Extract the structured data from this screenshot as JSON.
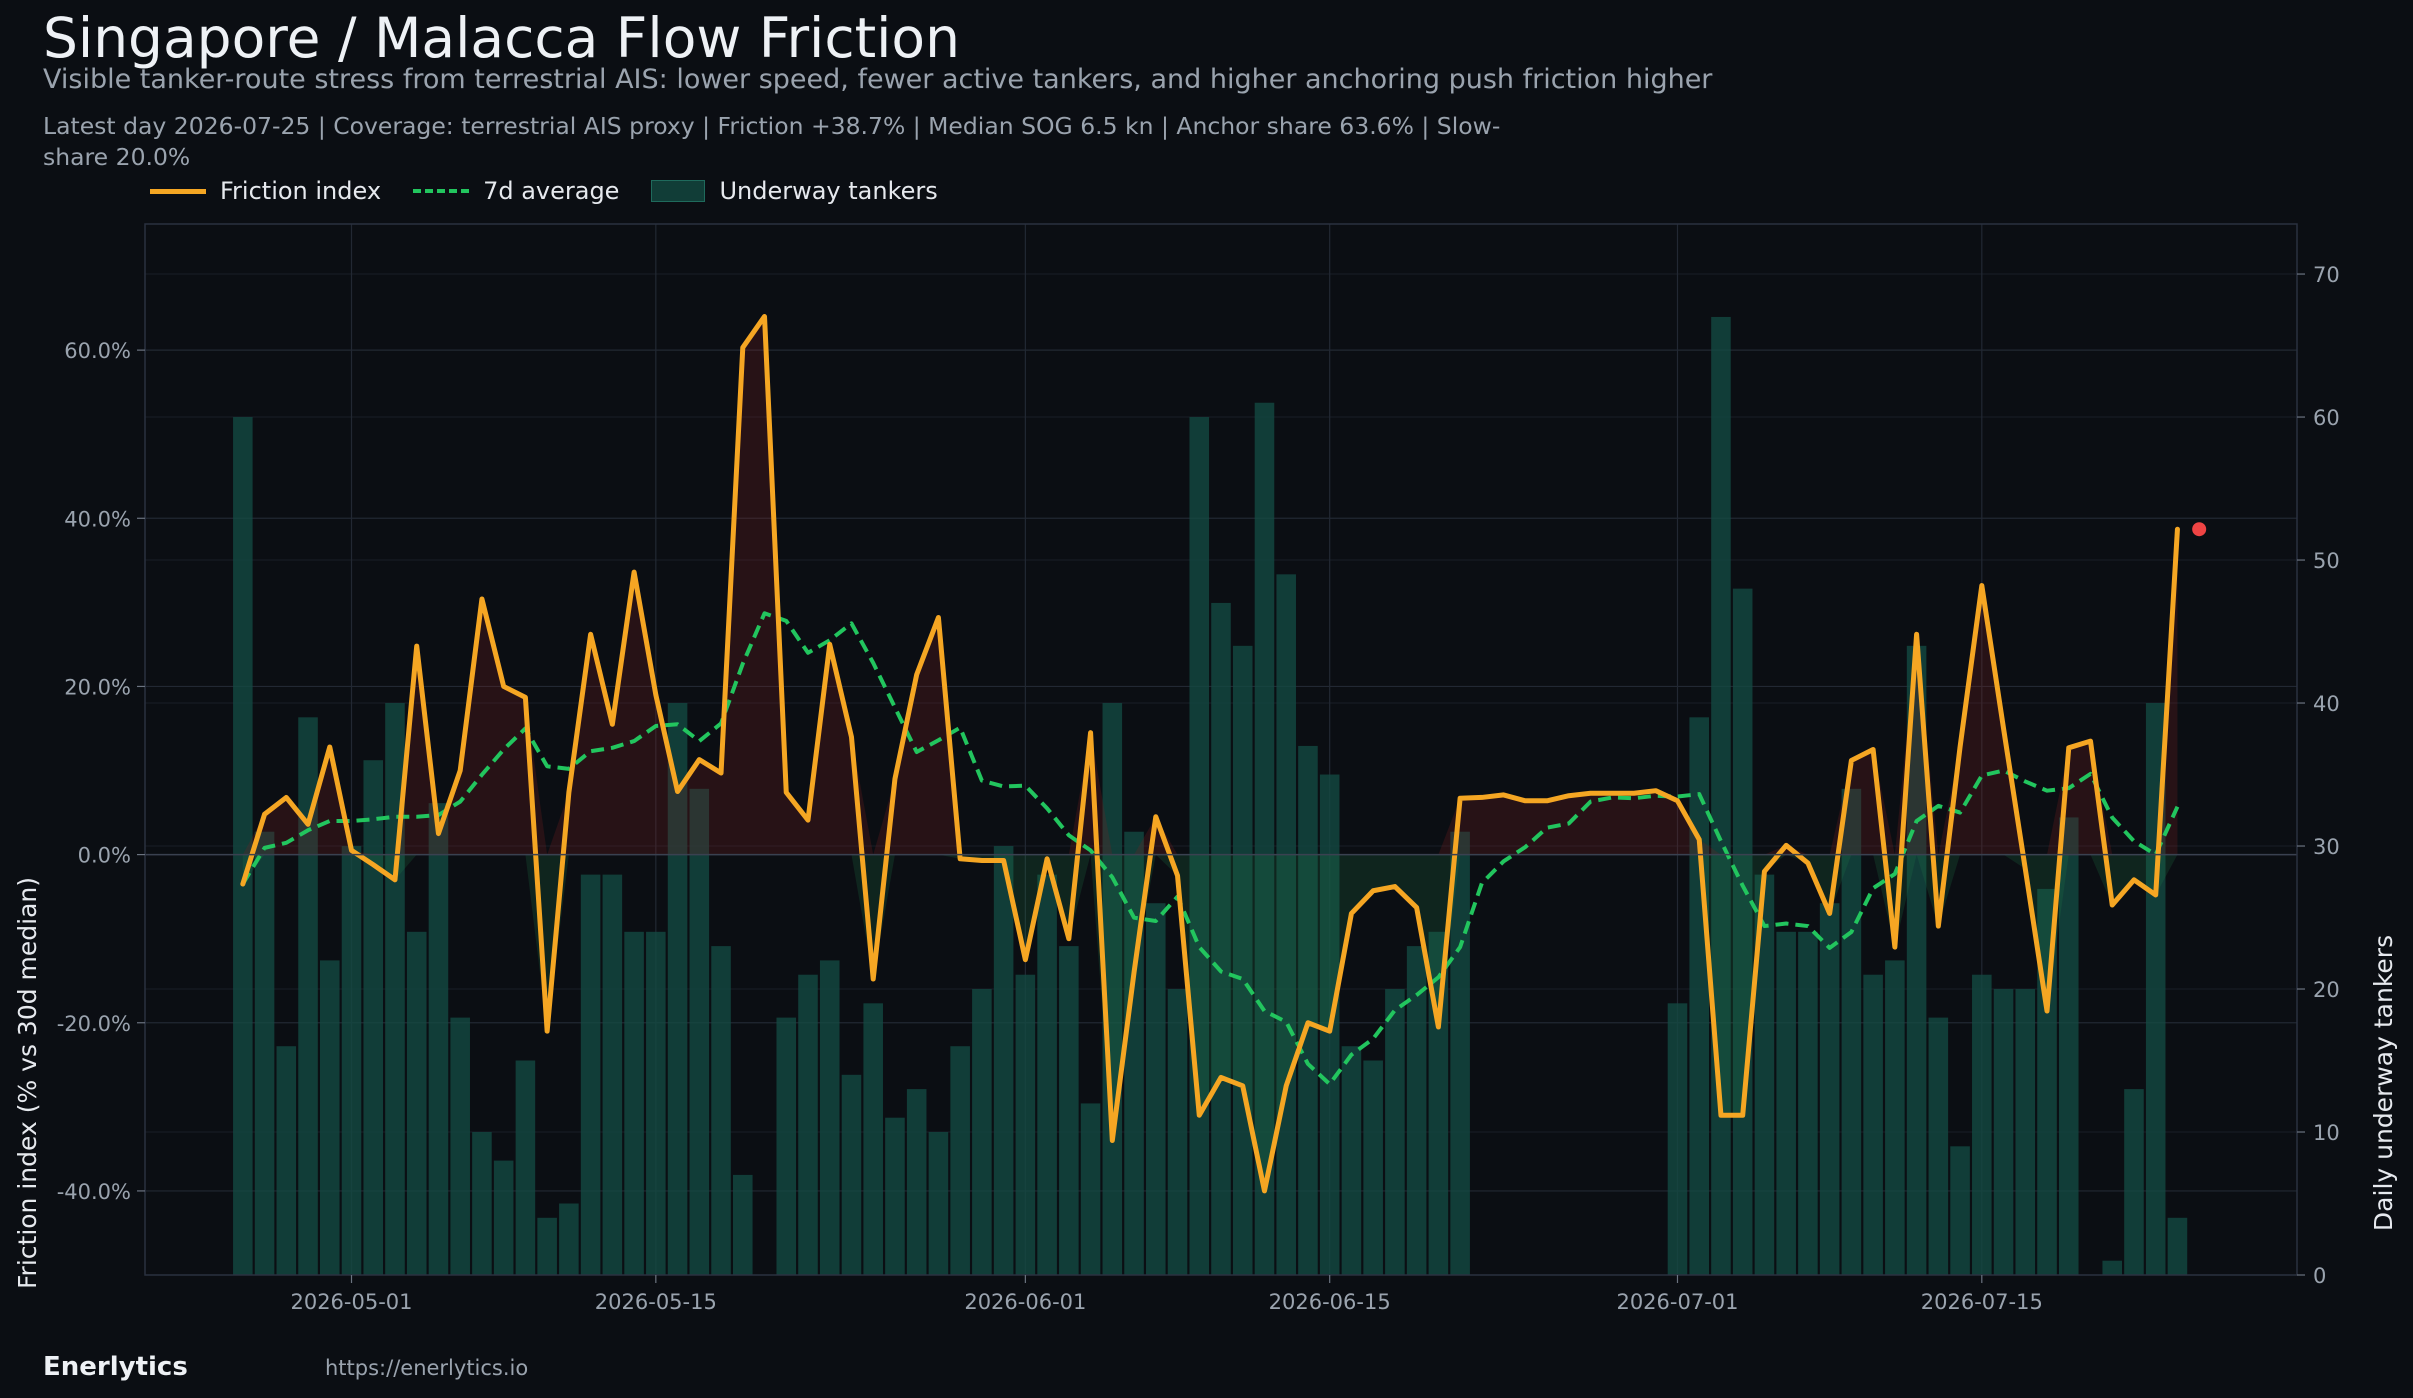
{
  "header": {
    "title": "Singapore / Malacca Flow Friction",
    "subtitle": "Visible tanker-route stress from terrestrial AIS: lower speed, fewer active tankers, and higher anchoring push friction higher",
    "stats": "Latest day 2026-07-25  |  Coverage: terrestrial AIS proxy  |  Friction +38.7%  |  Median SOG 6.5 kn  |  Anchor share 63.6%  |  Slow-share 20.0%"
  },
  "legend": {
    "friction": "Friction index",
    "avg": "7d average",
    "tankers": "Underway tankers"
  },
  "footer": {
    "brand": "Enerlytics",
    "url": "https://enerlytics.io"
  },
  "colors": {
    "background": "#0b0e13",
    "friction": "#f5a623",
    "avg": "#22c55e",
    "tankers": "#134a42",
    "latest_dot": "#ef4444",
    "positive_fill": "#7a1e1e",
    "negative_fill": "#1f7a4a"
  },
  "chart_data": {
    "type": "line",
    "title": "Singapore / Malacca Flow Friction",
    "start_date": "2026-04-26",
    "end_date": "2026-07-25",
    "ylabel": "Friction index (% vs 30d median)",
    "y2label": "Daily underway tankers",
    "ylim": [
      -50,
      75
    ],
    "y2lim": [
      0,
      73.5
    ],
    "y_ticks": [
      "-40.0%",
      "-20.0%",
      "0.0%",
      "20.0%",
      "40.0%",
      "60.0%"
    ],
    "y_tick_values": [
      -40,
      -20,
      0,
      20,
      40,
      60
    ],
    "y2_ticks": [
      "0",
      "10",
      "20",
      "30",
      "40",
      "50",
      "60",
      "70"
    ],
    "y2_tick_values": [
      0,
      10,
      20,
      30,
      40,
      50,
      60,
      70
    ],
    "x_ticks": [
      "2026-05-01",
      "2026-05-15",
      "2026-06-01",
      "2026-06-15",
      "2026-07-01",
      "2026-07-15"
    ],
    "grid": true,
    "legend_position": "top-left",
    "series": [
      {
        "name": "Friction index",
        "values": [
          -3.5,
          4.8,
          6.8,
          3.6,
          12.8,
          0.5,
          -1.2,
          -3.0,
          24.8,
          2.5,
          10.0,
          30.4,
          20.0,
          18.7,
          -21.0,
          7.4,
          26.2,
          15.5,
          33.6,
          19.0,
          7.5,
          11.3,
          9.7,
          60.3,
          64.0,
          7.4,
          4.1,
          25.0,
          14.0,
          -14.8,
          9.0,
          21.4,
          28.2,
          -0.5,
          -0.7,
          -0.7,
          -12.5,
          -0.5,
          -10.0,
          14.5,
          -34.0,
          -14.0,
          4.5,
          -2.5,
          -31.0,
          -26.5,
          -27.5,
          -40.0,
          -27.5,
          -20.0,
          -21.0,
          -7.0,
          -4.3,
          -3.8,
          -6.3,
          -20.5,
          6.7,
          6.8,
          7.1,
          6.4,
          6.4,
          7.0,
          7.3,
          7.3,
          7.3,
          7.6,
          6.4,
          1.8,
          -31.0,
          -31.0,
          -2.0,
          1.1,
          -1.0,
          -7.0,
          11.2,
          12.5,
          -11.0,
          26.2,
          -8.5,
          12.8,
          32.0,
          15.0,
          -1.7,
          -18.6,
          12.7,
          13.5,
          -6.0,
          -3.0,
          -4.8,
          38.7
        ]
      },
      {
        "name": "7d average",
        "values": [
          -3.5,
          0.8,
          1.4,
          2.9,
          4.0,
          4.0,
          4.2,
          4.5,
          4.5,
          4.7,
          6.3,
          9.5,
          12.5,
          15.0,
          10.5,
          10.2,
          12.3,
          12.7,
          13.5,
          15.3,
          15.5,
          13.5,
          15.6,
          22.7,
          28.7,
          27.8,
          24.0,
          25.5,
          27.5,
          22.8,
          17.5,
          12.2,
          13.6,
          15.1,
          8.8,
          8.1,
          8.2,
          5.5,
          2.3,
          0.5,
          -2.7,
          -7.5,
          -7.9,
          -5.0,
          -11.0,
          -13.9,
          -14.8,
          -18.6,
          -19.9,
          -24.9,
          -27.3,
          -23.8,
          -21.9,
          -18.5,
          -16.7,
          -14.6,
          -11.0,
          -3.4,
          -0.8,
          0.9,
          3.2,
          3.7,
          6.3,
          6.8,
          6.7,
          7.0,
          6.9,
          7.2,
          1.6,
          -3.7,
          -8.5,
          -8.2,
          -8.5,
          -11.1,
          -9.2,
          -4.0,
          -2.3,
          4.0,
          5.8,
          5.0,
          9.4,
          10.0,
          8.7,
          7.6,
          7.9,
          9.6,
          4.4,
          1.6,
          0.0,
          5.7
        ]
      },
      {
        "name": "Underway tankers",
        "axis": "right",
        "values": [
          60,
          31,
          16,
          39,
          22,
          30,
          36,
          40,
          24,
          33,
          18,
          10,
          8,
          15,
          4,
          5,
          28,
          28,
          24,
          24,
          40,
          34,
          23,
          7,
          0,
          18,
          21,
          22,
          14,
          19,
          11,
          13,
          10,
          16,
          20,
          30,
          21,
          28,
          23,
          12,
          40,
          31,
          26,
          20,
          60,
          47,
          44,
          61,
          49,
          37,
          35,
          16,
          15,
          20,
          23,
          24,
          31,
          0,
          0,
          0,
          0,
          0,
          0,
          0,
          0,
          0,
          19,
          39,
          67,
          48,
          28,
          24,
          24,
          26,
          34,
          21,
          22,
          44,
          18,
          9,
          21,
          20,
          20,
          27,
          32,
          0,
          1,
          13,
          40,
          4
        ]
      }
    ],
    "latest": {
      "date": "2026-07-25",
      "value": 38.7
    }
  }
}
